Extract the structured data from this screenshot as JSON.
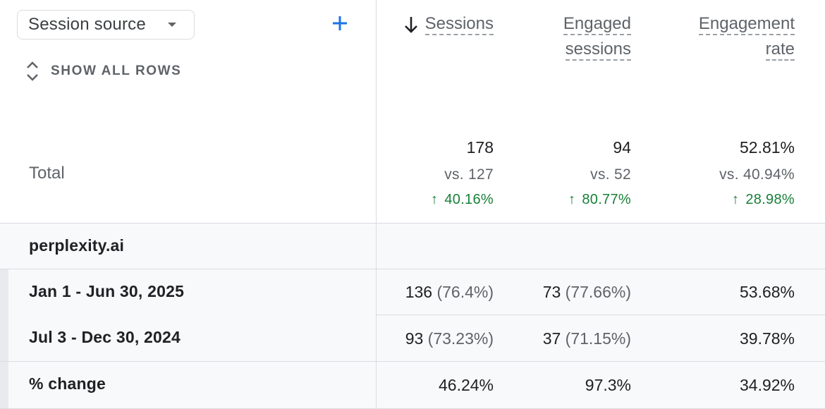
{
  "dimension": {
    "label": "Session source"
  },
  "show_all_rows": "SHOW ALL ROWS",
  "total": {
    "label": "Total"
  },
  "metrics": [
    {
      "key": "sessions",
      "header_line1": "Sessions",
      "header_line2": "",
      "total": "178",
      "vs": "vs. 127",
      "change": "40.16%",
      "sorted": true
    },
    {
      "key": "engaged_sessions",
      "header_line1": "Engaged",
      "header_line2": "sessions",
      "total": "94",
      "vs": "vs. 52",
      "change": "80.77%",
      "sorted": false
    },
    {
      "key": "engagement_rate",
      "header_line1": "Engagement",
      "header_line2": "rate",
      "total": "52.81%",
      "vs": "vs. 40.94%",
      "change": "28.98%",
      "sorted": false
    }
  ],
  "group": {
    "label": "perplexity.ai"
  },
  "rows": [
    {
      "label": "Jan 1 - Jun 30, 2025",
      "sessions": "136",
      "sessions_pct": "(76.4%)",
      "engaged": "73",
      "engaged_pct": "(77.66%)",
      "rate": "53.68%"
    },
    {
      "label": "Jul 3 - Dec 30, 2024",
      "sessions": "93",
      "sessions_pct": "(73.23%)",
      "engaged": "37",
      "engaged_pct": "(71.15%)",
      "rate": "39.78%"
    },
    {
      "label": "% change",
      "sessions": "46.24%",
      "sessions_pct": "",
      "engaged": "97.3%",
      "engaged_pct": "",
      "rate": "34.92%"
    }
  ],
  "colors": {
    "positive": "#188038",
    "accent": "#1a73e8",
    "border": "#dadce0"
  },
  "icons": {
    "add": "plus-icon",
    "sort": "arrow-down-icon",
    "expand": "unfold-icon",
    "dropdown": "caret-down-icon",
    "up": "arrow-up-icon"
  }
}
